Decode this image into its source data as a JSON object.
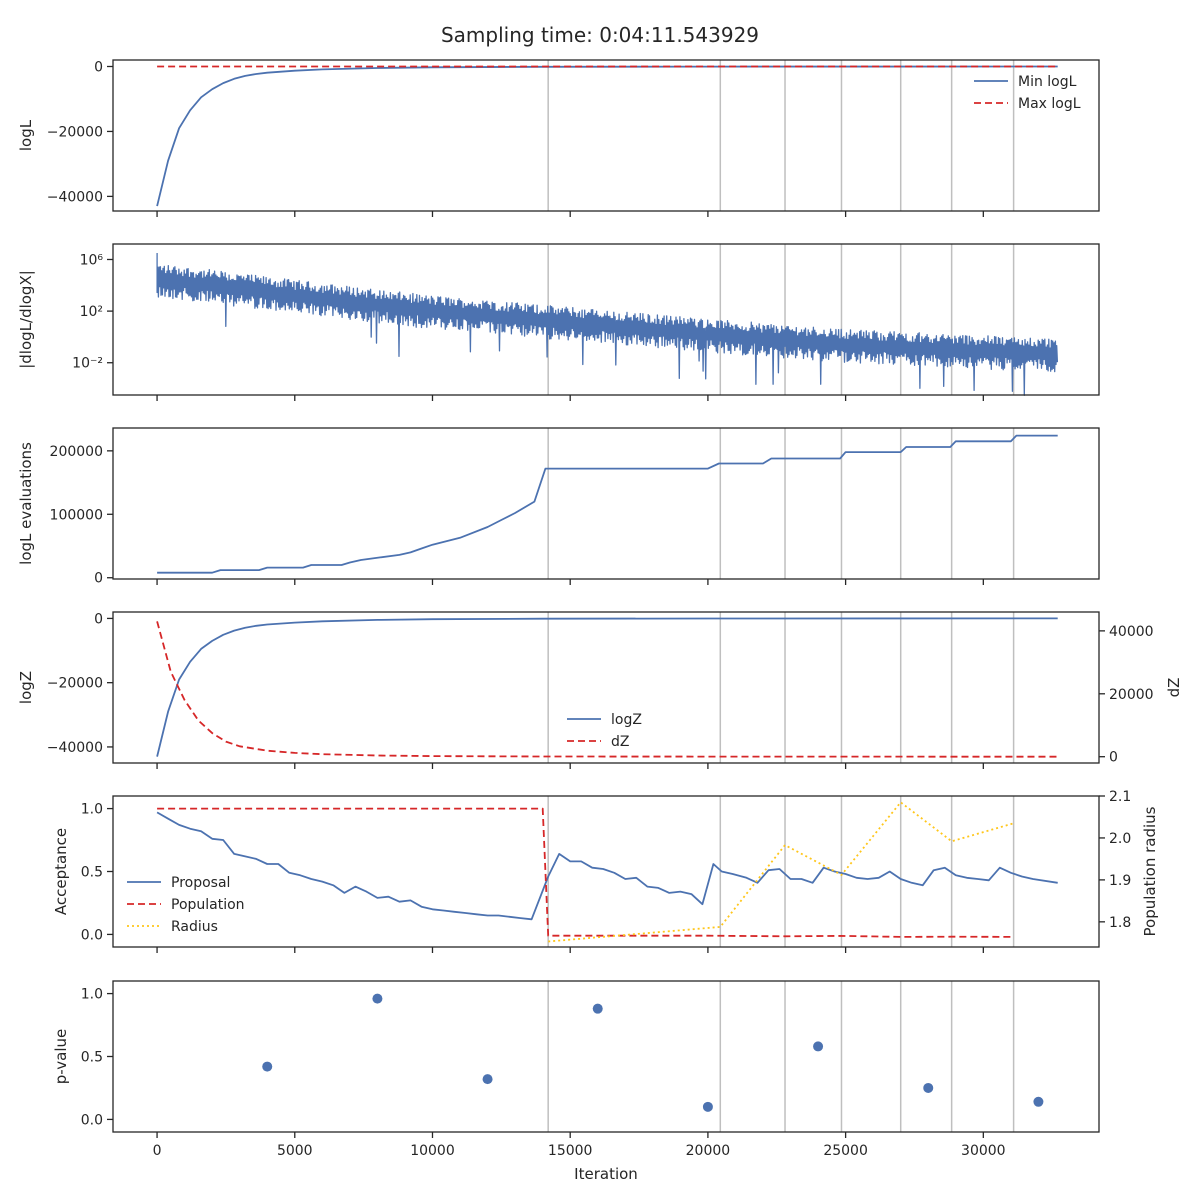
{
  "title": "Sampling time: 0:04:11.543929",
  "xlabel": "Iteration",
  "x_ticks": [
    0,
    5000,
    10000,
    15000,
    20000,
    25000,
    30000
  ],
  "xlim": [
    -1600,
    34200
  ],
  "vlines": [
    14200,
    20450,
    22800,
    24850,
    27000,
    28850,
    31100
  ],
  "colors": {
    "blue": "#4c72b0",
    "red": "#d62728",
    "gold": "#ffc61a",
    "grid": "#bfbfbf",
    "axis": "#262626"
  },
  "chart_data": [
    {
      "type": "line",
      "ylabel": "logL",
      "ylim": [
        -44500,
        2000
      ],
      "y_ticks": [
        {
          "v": 0,
          "label": "0"
        },
        {
          "v": -20000,
          "label": "−20000"
        },
        {
          "v": -40000,
          "label": "−40000"
        }
      ],
      "legend": "top-right",
      "series": [
        {
          "name": "Min logL",
          "color": "#4c72b0",
          "dash": "",
          "x": [
            0,
            400,
            800,
            1200,
            1600,
            2000,
            2400,
            2800,
            3200,
            3600,
            4000,
            5000,
            6000,
            8000,
            10000,
            14000,
            20000,
            32700
          ],
          "y": [
            -43000,
            -29000,
            -19000,
            -13500,
            -9500,
            -7000,
            -5100,
            -3800,
            -2900,
            -2300,
            -1900,
            -1300,
            -900,
            -450,
            -250,
            -80,
            -20,
            0
          ]
        },
        {
          "name": "Max logL",
          "color": "#d62728",
          "dash": "7,4",
          "x": [
            0,
            32700
          ],
          "y": [
            0,
            0
          ]
        }
      ]
    },
    {
      "type": "line",
      "ylabel": "|dlogL/dlogX|",
      "scale": "log",
      "ylim_log10": [
        -4.5,
        7.2
      ],
      "y_ticks": [
        {
          "v": 6,
          "label": "10⁶"
        },
        {
          "v": 2,
          "label": "10²"
        },
        {
          "v": -2,
          "label": "10⁻²"
        }
      ],
      "series": [
        {
          "name": "",
          "color": "#4c72b0",
          "dash": "",
          "x": [
            0,
            5000,
            10000,
            15000,
            20000,
            25000,
            30000,
            32700
          ],
          "y_log10": [
            4.7,
            3.4,
            2.2,
            1.3,
            0.4,
            -0.4,
            -0.9,
            -1.1
          ]
        }
      ]
    },
    {
      "type": "line",
      "ylabel": "logL evaluations",
      "ylim": [
        -2000,
        236000
      ],
      "y_ticks": [
        {
          "v": 0,
          "label": "0"
        },
        {
          "v": 100000,
          "label": "100000"
        },
        {
          "v": 200000,
          "label": "200000"
        }
      ],
      "series": [
        {
          "name": "",
          "color": "#4c72b0",
          "dash": "",
          "x": [
            0,
            2000,
            2300,
            3700,
            4000,
            5300,
            5600,
            6700,
            7000,
            7400,
            8100,
            8800,
            9200,
            9600,
            10000,
            11000,
            12000,
            12500,
            13000,
            13700,
            14100,
            20000,
            20400,
            22000,
            22300,
            24800,
            25000,
            27000,
            27200,
            28800,
            29000,
            31000,
            31200,
            32700
          ],
          "y": [
            8000,
            8000,
            12000,
            12000,
            16000,
            16000,
            20000,
            20000,
            24000,
            28000,
            32000,
            36000,
            40000,
            46000,
            52000,
            63000,
            80000,
            91000,
            102000,
            120000,
            172000,
            172000,
            180000,
            180000,
            188000,
            188000,
            198000,
            198000,
            206000,
            206000,
            215000,
            215000,
            224000,
            224000
          ]
        }
      ]
    },
    {
      "type": "line",
      "ylabel": "logZ",
      "ylabel_right": "dZ",
      "ylim": [
        -45000,
        2000
      ],
      "ylim_right": [
        -2000,
        46000
      ],
      "y_ticks": [
        {
          "v": 0,
          "label": "0"
        },
        {
          "v": -20000,
          "label": "−20000"
        },
        {
          "v": -40000,
          "label": "−40000"
        }
      ],
      "y_ticks_right": [
        {
          "v": 0,
          "label": "0"
        },
        {
          "v": 20000,
          "label": "20000"
        },
        {
          "v": 40000,
          "label": "40000"
        }
      ],
      "legend": "lower-center",
      "series": [
        {
          "name": "logZ",
          "color": "#4c72b0",
          "dash": "",
          "axis": "left",
          "x": [
            0,
            400,
            800,
            1200,
            1600,
            2000,
            2400,
            2800,
            3200,
            3600,
            4000,
            5000,
            6000,
            8000,
            10000,
            14000,
            20000,
            32700
          ],
          "y": [
            -43000,
            -29000,
            -19000,
            -13500,
            -9500,
            -7000,
            -5100,
            -3800,
            -2900,
            -2300,
            -1900,
            -1300,
            -900,
            -450,
            -250,
            -80,
            -20,
            0
          ]
        },
        {
          "name": "dZ",
          "color": "#d62728",
          "dash": "7,4",
          "axis": "right",
          "x": [
            0,
            500,
            1000,
            1500,
            2000,
            2500,
            3000,
            4000,
            5000,
            6000,
            8000,
            10000,
            14000,
            20000,
            32700
          ],
          "y": [
            43000,
            27000,
            18000,
            11500,
            7500,
            4800,
            3300,
            1900,
            1200,
            800,
            400,
            200,
            80,
            20,
            0
          ]
        }
      ]
    },
    {
      "type": "line",
      "ylabel": "Acceptance",
      "ylabel_right": "Population radius",
      "ylim": [
        -0.1,
        1.1
      ],
      "ylim_right": [
        1.74,
        2.1
      ],
      "y_ticks": [
        {
          "v": 0,
          "label": "0.0"
        },
        {
          "v": 0.5,
          "label": "0.5"
        },
        {
          "v": 1.0,
          "label": "1.0"
        }
      ],
      "y_ticks_right": [
        {
          "v": 1.8,
          "label": "1.8"
        },
        {
          "v": 1.9,
          "label": "1.9"
        },
        {
          "v": 2.0,
          "label": "2.0"
        },
        {
          "v": 2.1,
          "label": "2.1"
        }
      ],
      "legend": "middle-left",
      "series": [
        {
          "name": "Proposal",
          "color": "#4c72b0",
          "dash": "",
          "axis": "left",
          "x": [
            0,
            400,
            800,
            1200,
            1600,
            2000,
            2400,
            2800,
            3200,
            3600,
            4000,
            4400,
            4800,
            5200,
            5600,
            6000,
            6400,
            6800,
            7200,
            7600,
            8000,
            8400,
            8800,
            9200,
            9600,
            10000,
            10400,
            10800,
            11200,
            11600,
            12000,
            12400,
            12800,
            13200,
            13600,
            14200,
            14600,
            15000,
            15400,
            15800,
            16200,
            16600,
            17000,
            17400,
            17800,
            18200,
            18600,
            19000,
            19400,
            19800,
            20200,
            20500,
            20900,
            21400,
            21800,
            22200,
            22600,
            23000,
            23400,
            23800,
            24200,
            24600,
            25000,
            25400,
            25800,
            26200,
            26600,
            27000,
            27400,
            27800,
            28200,
            28600,
            29000,
            29400,
            29800,
            30200,
            30600,
            31000,
            31400,
            31800,
            32700
          ],
          "y": [
            0.97,
            0.92,
            0.87,
            0.84,
            0.82,
            0.76,
            0.75,
            0.64,
            0.62,
            0.6,
            0.56,
            0.56,
            0.49,
            0.47,
            0.44,
            0.42,
            0.39,
            0.33,
            0.38,
            0.34,
            0.29,
            0.3,
            0.26,
            0.27,
            0.22,
            0.2,
            0.19,
            0.18,
            0.17,
            0.16,
            0.15,
            0.15,
            0.14,
            0.13,
            0.12,
            0.46,
            0.64,
            0.58,
            0.58,
            0.53,
            0.52,
            0.49,
            0.44,
            0.45,
            0.38,
            0.37,
            0.33,
            0.34,
            0.32,
            0.24,
            0.56,
            0.5,
            0.48,
            0.45,
            0.41,
            0.51,
            0.52,
            0.44,
            0.44,
            0.41,
            0.53,
            0.5,
            0.48,
            0.45,
            0.44,
            0.45,
            0.5,
            0.44,
            0.41,
            0.39,
            0.51,
            0.53,
            0.47,
            0.45,
            0.44,
            0.43,
            0.53,
            0.49,
            0.46,
            0.44,
            0.41
          ]
        },
        {
          "name": "Population",
          "color": "#d62728",
          "dash": "7,4",
          "axis": "left",
          "x": [
            0,
            14000,
            14200,
            20000,
            22800,
            24850,
            27000,
            28850,
            31100
          ],
          "y": [
            1.0,
            1.0,
            -0.01,
            -0.01,
            -0.015,
            -0.012,
            -0.02,
            -0.018,
            -0.02
          ]
        },
        {
          "name": "Radius",
          "color": "#ffc61a",
          "dash": "2,3",
          "axis": "right",
          "x": [
            14200,
            20450,
            22800,
            24850,
            27000,
            28850,
            31100
          ],
          "y": [
            1.753,
            1.788,
            1.983,
            1.912,
            2.085,
            1.992,
            2.035
          ]
        }
      ]
    },
    {
      "type": "scatter",
      "ylabel": "p-value",
      "ylim": [
        -0.1,
        1.1
      ],
      "y_ticks": [
        {
          "v": 0,
          "label": "0.0"
        },
        {
          "v": 0.5,
          "label": "0.5"
        },
        {
          "v": 1.0,
          "label": "1.0"
        }
      ],
      "series": [
        {
          "name": "",
          "color": "#4c72b0",
          "x": [
            4000,
            8000,
            12000,
            16000,
            20000,
            24000,
            28000,
            32000
          ],
          "y": [
            0.42,
            0.96,
            0.32,
            0.88,
            0.1,
            0.58,
            0.25,
            0.14
          ]
        }
      ]
    }
  ]
}
